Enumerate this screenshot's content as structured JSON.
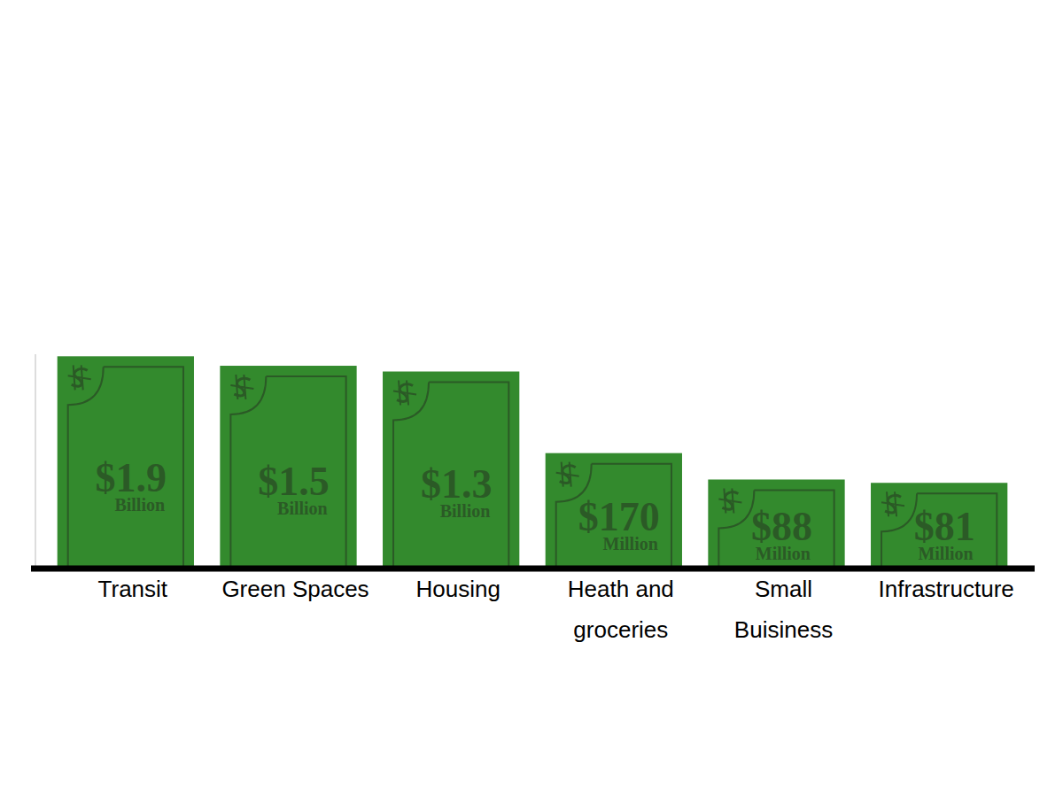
{
  "chart_data": {
    "type": "bar",
    "categories": [
      "Transit",
      "Green Spaces",
      "Housing",
      "Heath and groceries",
      "Small Buisiness",
      "Infrastructure"
    ],
    "values": [
      1900,
      1500,
      1300,
      170,
      88,
      81
    ],
    "value_labels": [
      "$1.9 Billion",
      "$1.5 Billion",
      "$1.3 Billion",
      "$170 Million",
      "$88 Million",
      "$81 Million"
    ],
    "color": "#338a2d",
    "ylim": [
      10,
      2000
    ],
    "log": "y",
    "data_labels": true,
    "tick_labels": "x",
    "grid": false
  }
}
